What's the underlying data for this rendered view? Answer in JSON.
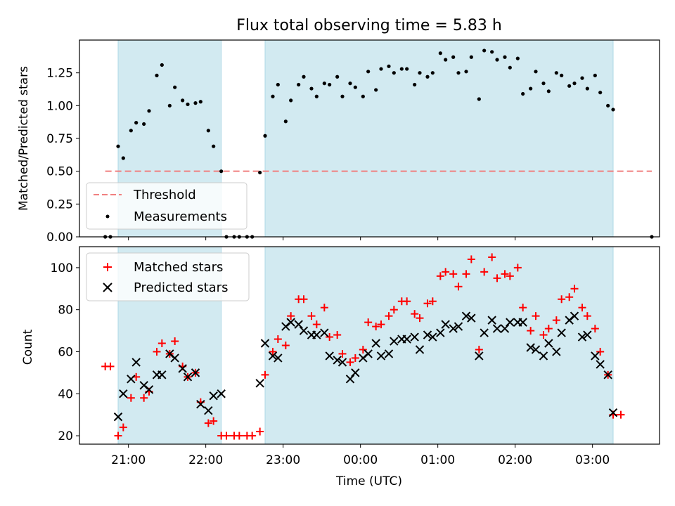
{
  "chart_data": [
    {
      "type": "scatter",
      "title": "Flux total observing time = 5.83 h",
      "xlabel": "",
      "ylabel": "Matched/Predicted stars",
      "ylim": [
        0,
        1.5
      ],
      "yticks": [
        0,
        0.25,
        0.5,
        0.75,
        1.0,
        1.25
      ],
      "ytick_labels": [
        "0.00",
        "0.25",
        "0.50",
        "0.75",
        "1.00",
        "1.25"
      ],
      "xlim": [
        "20:22",
        "03:52"
      ],
      "shaded_intervals": [
        [
          "20:52",
          "22:12"
        ],
        [
          "22:46",
          "03:16"
        ]
      ],
      "threshold": {
        "name": "Threshold",
        "y": 0.5,
        "x_range": [
          "20:42",
          "03:46"
        ],
        "color": "#f08080",
        "style": "dashed"
      },
      "series": [
        {
          "name": "Measurements",
          "marker": "dot",
          "color": "#000000",
          "points": [
            [
              "20:42",
              0
            ],
            [
              "20:46",
              0
            ],
            [
              "20:52",
              0.69
            ],
            [
              "20:56",
              0.6
            ],
            [
              "21:02",
              0.81
            ],
            [
              "21:06",
              0.87
            ],
            [
              "21:12",
              0.86
            ],
            [
              "21:16",
              0.96
            ],
            [
              "21:22",
              1.23
            ],
            [
              "21:26",
              1.31
            ],
            [
              "21:32",
              1.0
            ],
            [
              "21:36",
              1.14
            ],
            [
              "21:42",
              1.04
            ],
            [
              "21:46",
              1.01
            ],
            [
              "21:52",
              1.02
            ],
            [
              "21:56",
              1.03
            ],
            [
              "22:02",
              0.81
            ],
            [
              "22:06",
              0.69
            ],
            [
              "22:12",
              0.5
            ],
            [
              "22:16",
              0
            ],
            [
              "22:22",
              0
            ],
            [
              "22:26",
              0
            ],
            [
              "22:32",
              0
            ],
            [
              "22:36",
              0
            ],
            [
              "22:42",
              0.49
            ],
            [
              "22:46",
              0.77
            ],
            [
              "22:52",
              1.07
            ],
            [
              "22:56",
              1.16
            ],
            [
              "23:02",
              0.88
            ],
            [
              "23:06",
              1.04
            ],
            [
              "23:12",
              1.16
            ],
            [
              "23:16",
              1.22
            ],
            [
              "23:22",
              1.13
            ],
            [
              "23:26",
              1.07
            ],
            [
              "23:32",
              1.17
            ],
            [
              "23:36",
              1.16
            ],
            [
              "23:42",
              1.22
            ],
            [
              "23:46",
              1.07
            ],
            [
              "23:52",
              1.17
            ],
            [
              "23:56",
              1.14
            ],
            [
              "00:02",
              1.07
            ],
            [
              "00:06",
              1.26
            ],
            [
              "00:12",
              1.12
            ],
            [
              "00:16",
              1.28
            ],
            [
              "00:22",
              1.3
            ],
            [
              "00:26",
              1.25
            ],
            [
              "00:32",
              1.28
            ],
            [
              "00:36",
              1.28
            ],
            [
              "00:42",
              1.16
            ],
            [
              "00:46",
              1.25
            ],
            [
              "00:52",
              1.22
            ],
            [
              "00:56",
              1.25
            ],
            [
              "01:02",
              1.4
            ],
            [
              "01:06",
              1.35
            ],
            [
              "01:12",
              1.37
            ],
            [
              "01:16",
              1.25
            ],
            [
              "01:22",
              1.26
            ],
            [
              "01:26",
              1.37
            ],
            [
              "01:32",
              1.05
            ],
            [
              "01:36",
              1.42
            ],
            [
              "01:42",
              1.41
            ],
            [
              "01:46",
              1.35
            ],
            [
              "01:52",
              1.37
            ],
            [
              "01:56",
              1.29
            ],
            [
              "02:02",
              1.36
            ],
            [
              "02:06",
              1.09
            ],
            [
              "02:12",
              1.13
            ],
            [
              "02:16",
              1.26
            ],
            [
              "02:22",
              1.17
            ],
            [
              "02:26",
              1.11
            ],
            [
              "02:32",
              1.25
            ],
            [
              "02:36",
              1.23
            ],
            [
              "02:42",
              1.15
            ],
            [
              "02:46",
              1.17
            ],
            [
              "02:52",
              1.21
            ],
            [
              "02:56",
              1.13
            ],
            [
              "03:02",
              1.23
            ],
            [
              "03:06",
              1.1
            ],
            [
              "03:12",
              1.0
            ],
            [
              "03:16",
              0.97
            ],
            [
              "03:46",
              0
            ]
          ]
        }
      ],
      "legend": {
        "position": "lower-left",
        "entries": [
          "Threshold",
          "Measurements"
        ]
      },
      "grid": false
    },
    {
      "type": "scatter",
      "title": "",
      "xlabel": "Time (UTC)",
      "ylabel": "Count",
      "ylim": [
        16,
        110
      ],
      "yticks": [
        20,
        40,
        60,
        80,
        100
      ],
      "ytick_labels": [
        "20",
        "40",
        "60",
        "80",
        "100"
      ],
      "xlim": [
        "20:22",
        "03:52"
      ],
      "xticks": [
        "21:00",
        "22:00",
        "23:00",
        "00:00",
        "01:00",
        "02:00",
        "03:00"
      ],
      "xtick_labels": [
        "21:00",
        "22:00",
        "23:00",
        "00:00",
        "01:00",
        "02:00",
        "03:00"
      ],
      "shaded_intervals": [
        [
          "20:52",
          "22:12"
        ],
        [
          "22:46",
          "03:16"
        ]
      ],
      "series": [
        {
          "name": "Matched stars",
          "marker": "plus",
          "color": "#ff0000",
          "points": [
            [
              "20:42",
              53
            ],
            [
              "20:46",
              53
            ],
            [
              "20:52",
              20
            ],
            [
              "20:56",
              24
            ],
            [
              "21:02",
              38
            ],
            [
              "21:06",
              48
            ],
            [
              "21:12",
              38
            ],
            [
              "21:16",
              41
            ],
            [
              "21:22",
              60
            ],
            [
              "21:26",
              64
            ],
            [
              "21:32",
              59
            ],
            [
              "21:36",
              65
            ],
            [
              "21:42",
              53
            ],
            [
              "21:46",
              48
            ],
            [
              "21:52",
              50
            ],
            [
              "21:56",
              36
            ],
            [
              "22:02",
              26
            ],
            [
              "22:06",
              27
            ],
            [
              "22:12",
              20
            ],
            [
              "22:16",
              20
            ],
            [
              "22:22",
              20
            ],
            [
              "22:26",
              20
            ],
            [
              "22:32",
              20
            ],
            [
              "22:36",
              20
            ],
            [
              "22:42",
              22
            ],
            [
              "22:46",
              49
            ],
            [
              "22:52",
              60
            ],
            [
              "22:56",
              66
            ],
            [
              "23:02",
              63
            ],
            [
              "23:06",
              77
            ],
            [
              "23:12",
              85
            ],
            [
              "23:16",
              85
            ],
            [
              "23:22",
              77
            ],
            [
              "23:26",
              73
            ],
            [
              "23:32",
              81
            ],
            [
              "23:36",
              67
            ],
            [
              "23:42",
              68
            ],
            [
              "23:46",
              59
            ],
            [
              "23:52",
              55
            ],
            [
              "23:56",
              57
            ],
            [
              "00:02",
              61
            ],
            [
              "00:06",
              74
            ],
            [
              "00:12",
              72
            ],
            [
              "00:16",
              73
            ],
            [
              "00:22",
              77
            ],
            [
              "00:26",
              80
            ],
            [
              "00:32",
              84
            ],
            [
              "00:36",
              84
            ],
            [
              "00:42",
              78
            ],
            [
              "00:46",
              76
            ],
            [
              "00:52",
              83
            ],
            [
              "00:56",
              84
            ],
            [
              "01:02",
              96
            ],
            [
              "01:06",
              98
            ],
            [
              "01:12",
              97
            ],
            [
              "01:16",
              91
            ],
            [
              "01:22",
              97
            ],
            [
              "01:26",
              104
            ],
            [
              "01:32",
              61
            ],
            [
              "01:36",
              98
            ],
            [
              "01:42",
              105
            ],
            [
              "01:46",
              95
            ],
            [
              "01:52",
              97
            ],
            [
              "01:56",
              96
            ],
            [
              "02:02",
              100
            ],
            [
              "02:06",
              81
            ],
            [
              "02:12",
              70
            ],
            [
              "02:16",
              77
            ],
            [
              "02:22",
              68
            ],
            [
              "02:26",
              71
            ],
            [
              "02:32",
              75
            ],
            [
              "02:36",
              85
            ],
            [
              "02:42",
              86
            ],
            [
              "02:46",
              90
            ],
            [
              "02:52",
              81
            ],
            [
              "02:56",
              77
            ],
            [
              "03:02",
              71
            ],
            [
              "03:06",
              60
            ],
            [
              "03:12",
              49
            ],
            [
              "03:16",
              30
            ],
            [
              "03:22",
              30
            ]
          ]
        },
        {
          "name": "Predicted stars",
          "marker": "x",
          "color": "#000000",
          "points": [
            [
              "20:52",
              29
            ],
            [
              "20:56",
              40
            ],
            [
              "21:02",
              47
            ],
            [
              "21:06",
              55
            ],
            [
              "21:12",
              44
            ],
            [
              "21:16",
              42
            ],
            [
              "21:22",
              49
            ],
            [
              "21:26",
              49
            ],
            [
              "21:32",
              59
            ],
            [
              "21:36",
              57
            ],
            [
              "21:42",
              52
            ],
            [
              "21:46",
              48
            ],
            [
              "21:52",
              50
            ],
            [
              "21:56",
              35
            ],
            [
              "22:02",
              32
            ],
            [
              "22:06",
              39
            ],
            [
              "22:12",
              40
            ],
            [
              "22:42",
              45
            ],
            [
              "22:46",
              64
            ],
            [
              "22:52",
              58
            ],
            [
              "22:56",
              57
            ],
            [
              "23:02",
              72
            ],
            [
              "23:06",
              74
            ],
            [
              "23:12",
              73
            ],
            [
              "23:16",
              70
            ],
            [
              "23:22",
              68
            ],
            [
              "23:26",
              68
            ],
            [
              "23:32",
              69
            ],
            [
              "23:36",
              58
            ],
            [
              "23:42",
              56
            ],
            [
              "23:46",
              55
            ],
            [
              "23:52",
              47
            ],
            [
              "23:56",
              50
            ],
            [
              "00:02",
              57
            ],
            [
              "00:06",
              59
            ],
            [
              "00:12",
              64
            ],
            [
              "00:16",
              58
            ],
            [
              "00:22",
              59
            ],
            [
              "00:26",
              65
            ],
            [
              "00:32",
              66
            ],
            [
              "00:36",
              66
            ],
            [
              "00:42",
              67
            ],
            [
              "00:46",
              61
            ],
            [
              "00:52",
              68
            ],
            [
              "00:56",
              67
            ],
            [
              "01:02",
              69
            ],
            [
              "01:06",
              73
            ],
            [
              "01:12",
              71
            ],
            [
              "01:16",
              72
            ],
            [
              "01:22",
              77
            ],
            [
              "01:26",
              76
            ],
            [
              "01:32",
              58
            ],
            [
              "01:36",
              69
            ],
            [
              "01:42",
              75
            ],
            [
              "01:46",
              71
            ],
            [
              "01:52",
              71
            ],
            [
              "01:56",
              74
            ],
            [
              "02:02",
              74
            ],
            [
              "02:06",
              74
            ],
            [
              "02:12",
              62
            ],
            [
              "02:16",
              61
            ],
            [
              "02:22",
              58
            ],
            [
              "02:26",
              64
            ],
            [
              "02:32",
              60
            ],
            [
              "02:36",
              69
            ],
            [
              "02:42",
              75
            ],
            [
              "02:46",
              77
            ],
            [
              "02:52",
              67
            ],
            [
              "02:56",
              68
            ],
            [
              "03:02",
              58
            ],
            [
              "03:06",
              54
            ],
            [
              "03:12",
              49
            ],
            [
              "03:16",
              31
            ]
          ]
        }
      ],
      "legend": {
        "position": "upper-left",
        "entries": [
          "Matched stars",
          "Predicted stars"
        ]
      },
      "grid": false
    }
  ],
  "colors": {
    "shade": "#add8e6",
    "threshold": "#f08080",
    "matched": "#ff0000",
    "predicted": "#000000",
    "measurements": "#000000"
  }
}
